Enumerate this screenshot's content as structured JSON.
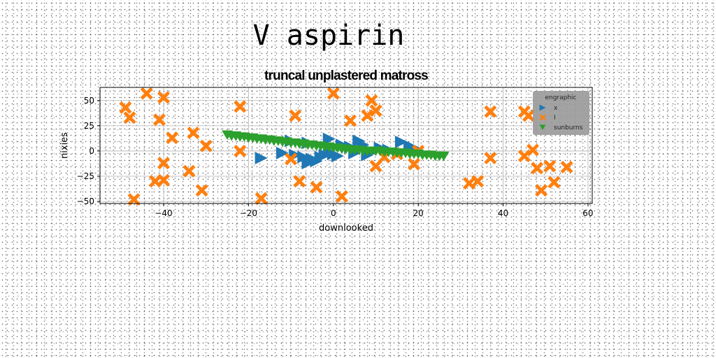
{
  "page_title": "V aspirin",
  "colors": {
    "x": "#1f77b4",
    "l": "#ff7f0e",
    "sunburns": "#2ca02c",
    "grid": "#b0b0b0",
    "legend_bg": "#999999"
  },
  "chart_data": {
    "type": "scatter",
    "title": "truncal unplastered matross",
    "xlabel": "downlooked",
    "ylabel": "nixies",
    "xlim": [
      -55,
      61
    ],
    "ylim": [
      -52,
      63
    ],
    "xticks": [
      -40,
      -20,
      0,
      20,
      40,
      60
    ],
    "yticks": [
      -50,
      -25,
      0,
      25,
      50
    ],
    "xtick_labels": [
      "−40",
      "−20",
      "0",
      "20",
      "40",
      "60"
    ],
    "ytick_labels": [
      "−50",
      "−25",
      "0",
      "25",
      "50"
    ],
    "grid": true,
    "legend": {
      "title": "engraphic",
      "position": "upper right"
    },
    "series": [
      {
        "name": "x",
        "marker": "triangle-right",
        "color": "#1f77b4",
        "points": [
          [
            -17,
            -7
          ],
          [
            -12,
            -2
          ],
          [
            -10,
            10
          ],
          [
            -9,
            -4
          ],
          [
            -7,
            -6
          ],
          [
            -6,
            -12
          ],
          [
            -5,
            -8
          ],
          [
            -4,
            -10
          ],
          [
            -3,
            -6
          ],
          [
            -2,
            -4
          ],
          [
            -1,
            -2
          ],
          [
            0,
            -3
          ],
          [
            1,
            -5
          ],
          [
            -1,
            12
          ],
          [
            2,
            6
          ],
          [
            4,
            4
          ],
          [
            5,
            -2
          ],
          [
            6,
            10
          ],
          [
            7,
            6
          ],
          [
            8,
            -4
          ],
          [
            9,
            -1
          ],
          [
            11,
            3
          ],
          [
            13,
            1
          ],
          [
            16,
            9
          ],
          [
            18,
            5
          ],
          [
            19,
            3
          ],
          [
            -6,
            8
          ]
        ]
      },
      {
        "name": "l",
        "marker": "x-filled",
        "color": "#ff7f0e",
        "points": [
          [
            -49,
            43
          ],
          [
            -48,
            33
          ],
          [
            -47,
            -48
          ],
          [
            -44,
            57
          ],
          [
            -42,
            -30
          ],
          [
            -41,
            31
          ],
          [
            -40,
            53
          ],
          [
            -40,
            -12
          ],
          [
            -40,
            -29
          ],
          [
            -38,
            13
          ],
          [
            -34,
            -20
          ],
          [
            -33,
            18
          ],
          [
            -31,
            -39
          ],
          [
            -30,
            5
          ],
          [
            -22,
            0
          ],
          [
            -22,
            44
          ],
          [
            -17,
            -47
          ],
          [
            -10,
            -8
          ],
          [
            -9,
            35
          ],
          [
            -8,
            -30
          ],
          [
            -4,
            -36
          ],
          [
            0,
            57
          ],
          [
            2,
            -45
          ],
          [
            4,
            30
          ],
          [
            8,
            35
          ],
          [
            9,
            50
          ],
          [
            10,
            -15
          ],
          [
            10,
            40
          ],
          [
            12,
            -6
          ],
          [
            15,
            -3
          ],
          [
            19,
            -13
          ],
          [
            20,
            0
          ],
          [
            32,
            -32
          ],
          [
            34,
            -30
          ],
          [
            37,
            -7
          ],
          [
            37,
            39
          ],
          [
            45,
            -5
          ],
          [
            45,
            39
          ],
          [
            46,
            35
          ],
          [
            47,
            1
          ],
          [
            48,
            -17
          ],
          [
            49,
            -39
          ],
          [
            51,
            -15
          ],
          [
            52,
            -31
          ],
          [
            55,
            -16
          ]
        ]
      },
      {
        "name": "sunburns",
        "marker": "triangle-down",
        "color": "#2ca02c",
        "points": [
          [
            -25,
            16
          ],
          [
            -24,
            15
          ],
          [
            -23,
            15
          ],
          [
            -22,
            14
          ],
          [
            -21,
            14
          ],
          [
            -20,
            13
          ],
          [
            -19,
            13
          ],
          [
            -18,
            12
          ],
          [
            -17,
            12
          ],
          [
            -16,
            11
          ],
          [
            -15,
            11
          ],
          [
            -14,
            10
          ],
          [
            -13,
            10
          ],
          [
            -12,
            9
          ],
          [
            -11,
            9
          ],
          [
            -10,
            8
          ],
          [
            -9,
            8
          ],
          [
            -8,
            7
          ],
          [
            -7,
            7
          ],
          [
            -6,
            6
          ],
          [
            -5,
            6
          ],
          [
            -4,
            5
          ],
          [
            -3,
            5
          ],
          [
            -2,
            4
          ],
          [
            -1,
            4
          ],
          [
            0,
            3
          ],
          [
            1,
            3
          ],
          [
            2,
            2
          ],
          [
            3,
            2
          ],
          [
            4,
            1
          ],
          [
            5,
            1
          ],
          [
            6,
            1
          ],
          [
            7,
            0
          ],
          [
            8,
            0
          ],
          [
            9,
            0
          ],
          [
            10,
            0
          ],
          [
            11,
            0
          ],
          [
            12,
            -1
          ],
          [
            13,
            -1
          ],
          [
            14,
            -1
          ],
          [
            15,
            -2
          ],
          [
            16,
            -2
          ],
          [
            17,
            -2
          ],
          [
            18,
            -3
          ],
          [
            19,
            -3
          ],
          [
            20,
            -3
          ],
          [
            21,
            -4
          ],
          [
            22,
            -4
          ],
          [
            23,
            -4
          ],
          [
            24,
            -5
          ],
          [
            25,
            -5
          ],
          [
            26,
            -5
          ]
        ]
      }
    ]
  }
}
